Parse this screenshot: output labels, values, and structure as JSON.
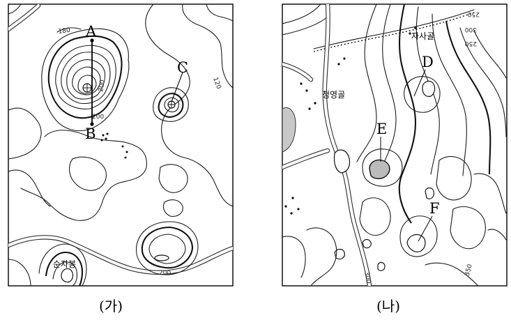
{
  "map_ga": {
    "caption": "(가)",
    "point_a": "A",
    "point_b": "B",
    "point_c": "C",
    "place_name": "순자봉",
    "contours": {
      "c180": "180",
      "c200_top": "200",
      "c200_mid": "200",
      "c120": "120",
      "c200_bottom": "200"
    }
  },
  "map_na": {
    "caption": "(나)",
    "point_d": "D",
    "point_e": "E",
    "point_f": "F",
    "place_top": "자사골",
    "place_mid": "청영골",
    "contours": {
      "c250_top": "250",
      "c300_top": "300",
      "c350": "350",
      "c300_bottom": "300",
      "c250_right": "250"
    }
  },
  "colors": {
    "line": "#1a1a1a",
    "water": "#c8c8c8",
    "paper": "#ffffff"
  }
}
